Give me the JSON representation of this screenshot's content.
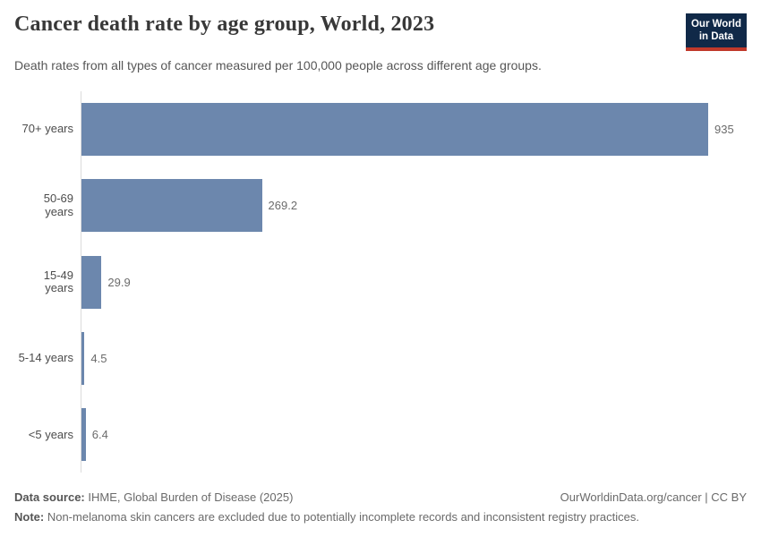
{
  "header": {
    "title": "Cancer death rate by age group, World, 2023",
    "subtitle": "Death rates from all types of cancer measured per 100,000 people across different age groups.",
    "logo_line1": "Our World",
    "logo_line2": "in Data",
    "logo_bg_color": "#102948",
    "logo_accent_color": "#c0392b"
  },
  "chart_data": {
    "type": "bar",
    "orientation": "horizontal",
    "categories": [
      "70+ years",
      "50-69 years",
      "15-49 years",
      "5-14 years",
      "<5 years"
    ],
    "values": [
      935,
      269.2,
      29.9,
      4.5,
      6.4
    ],
    "value_labels": [
      "935",
      "269.2",
      "29.9",
      "4.5",
      "6.4"
    ],
    "title": "Cancer death rate by age group, World, 2023",
    "xlabel": "",
    "ylabel": "",
    "xlim": [
      0,
      935
    ],
    "grid": false,
    "legend": false,
    "bar_color": "#6c87ad",
    "axis_line_color": "#dcdcdc"
  },
  "footer": {
    "source_label": "Data source:",
    "source_text": " IHME, Global Burden of Disease (2025)",
    "link_text": "OurWorldinData.org/cancer | CC BY",
    "note_label": "Note:",
    "note_text": " Non-melanoma skin cancers are excluded due to potentially incomplete records and inconsistent registry practices."
  }
}
